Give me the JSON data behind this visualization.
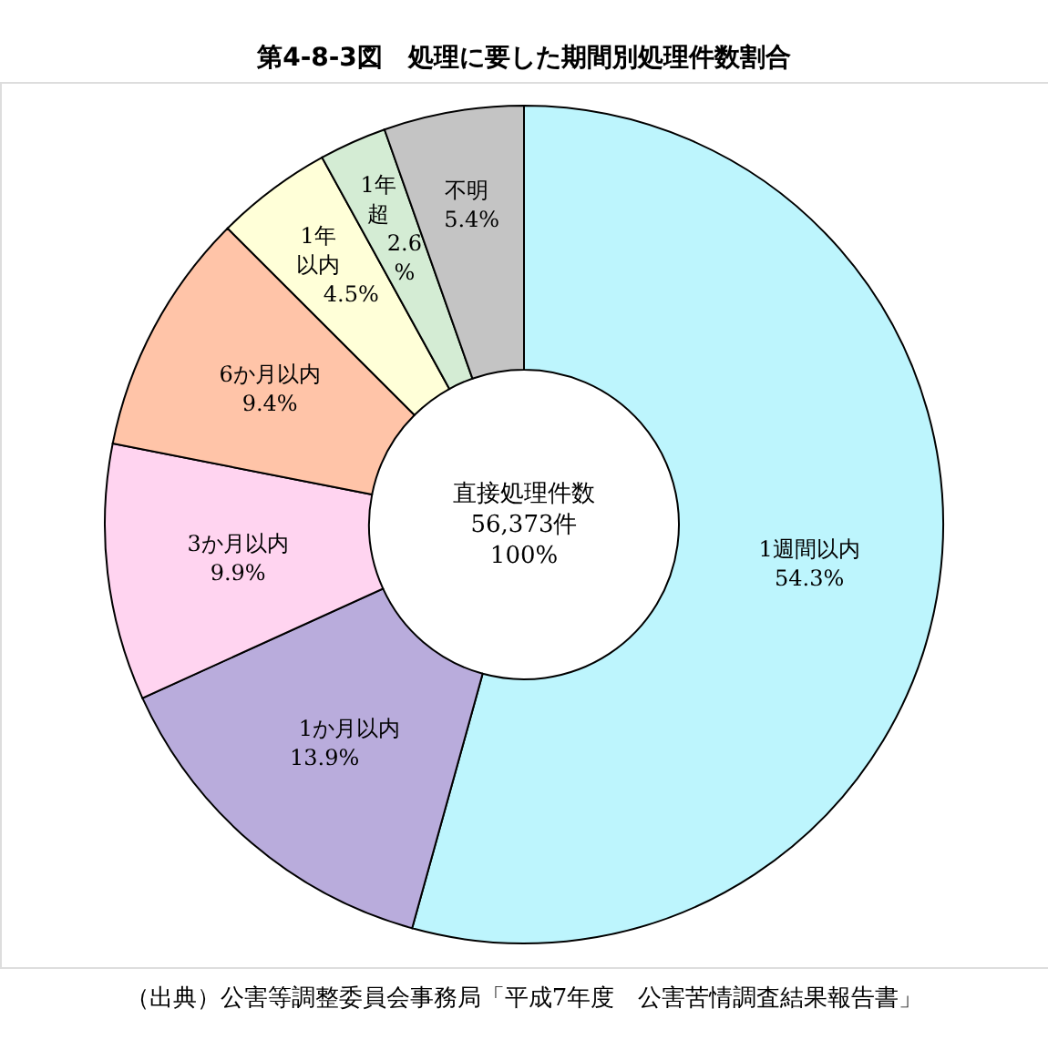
{
  "chart_data": {
    "type": "donut",
    "title": "第4-8-3図　処理に要した期間別処理件数割合",
    "categories": [
      "1週間以内",
      "1か月以内",
      "3か月以内",
      "6か月以内",
      "1年以内",
      "1年超",
      "不明"
    ],
    "values": [
      54.3,
      13.9,
      9.9,
      9.4,
      4.5,
      2.6,
      5.4
    ],
    "value_labels": [
      "54.3%",
      "13.9%",
      "9.9%",
      "9.4%",
      "4.5%",
      "2.6%",
      "5.4%"
    ],
    "colors": [
      "#bdf5fd",
      "#b9acdc",
      "#ffd4f0",
      "#ffc4a8",
      "#ffffd8",
      "#d4ecd4",
      "#c4c4c4"
    ],
    "annotations": [
      "直接処理件数",
      "56,373件",
      "100%",
      "（出典）公害等調整委員会事務局「平成7年度　公害苦情調査結果報告書」"
    ]
  }
}
